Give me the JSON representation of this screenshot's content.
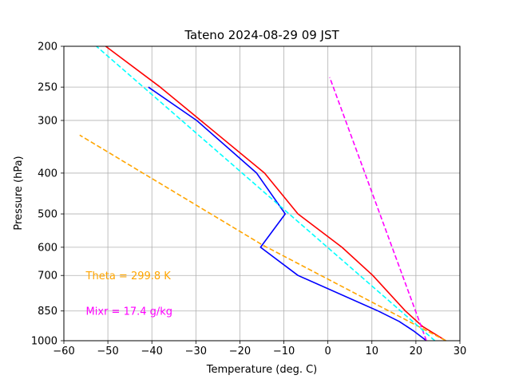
{
  "chart_data": {
    "type": "line",
    "title": "Tateno  2024-08-29 09 JST",
    "xlabel": "Temperature (deg. C)",
    "ylabel": "Pressure (hPa)",
    "xlim": [
      -60,
      30
    ],
    "ylim": [
      1000,
      200
    ],
    "y_scale": "log",
    "grid": true,
    "x_ticks": [
      -60,
      -50,
      -40,
      -30,
      -20,
      -10,
      0,
      10,
      20,
      30
    ],
    "x_tick_labels": [
      "−60",
      "−50",
      "−40",
      "−30",
      "−20",
      "−10",
      "0",
      "10",
      "20",
      "30"
    ],
    "y_ticks": [
      1000,
      850,
      700,
      600,
      500,
      400,
      300,
      250,
      200
    ],
    "y_tick_labels": [
      "1000",
      "850",
      "700",
      "600",
      "500",
      "400",
      "300",
      "250",
      "200"
    ],
    "series": [
      {
        "color": "#ff0000",
        "style": "solid",
        "points": [
          [
            26.8,
            1000
          ],
          [
            21.5,
            925
          ],
          [
            17.6,
            850
          ],
          [
            10.2,
            700
          ],
          [
            3.2,
            600
          ],
          [
            -6.8,
            500
          ],
          [
            -14.4,
            400
          ],
          [
            -28.9,
            300
          ],
          [
            -38.1,
            250
          ],
          [
            -50.5,
            200
          ]
        ]
      },
      {
        "color": "#0000ff",
        "style": "solid",
        "points": [
          [
            22.4,
            1000
          ],
          [
            19.6,
            950
          ],
          [
            16.2,
            900
          ],
          [
            11.4,
            850
          ],
          [
            -6.8,
            700
          ],
          [
            -15.3,
            600
          ],
          [
            -9.7,
            500
          ],
          [
            -16.2,
            400
          ],
          [
            -29.8,
            300
          ],
          [
            -40.8,
            250
          ]
        ]
      },
      {
        "color": "#ffa500",
        "style": "dashed",
        "points": [
          [
            26.8,
            1000
          ],
          [
            -14.8,
            593
          ],
          [
            -56.4,
            325
          ]
        ]
      },
      {
        "color": "#ff00ff",
        "style": "dashed",
        "points": [
          [
            22.4,
            1000
          ],
          [
            0.4,
            237
          ]
        ]
      },
      {
        "color": "#00ffff",
        "style": "dashed",
        "points": [
          [
            24.3,
            1000
          ],
          [
            -52.6,
            200
          ]
        ]
      }
    ],
    "annotations": [
      {
        "text": "Theta = 299.8 K",
        "color": "#ffa500",
        "x": -55,
        "y": 700
      },
      {
        "text": "Mixr = 17.4 g/kg",
        "color": "#ff00ff",
        "x": -55,
        "y": 850
      }
    ]
  }
}
